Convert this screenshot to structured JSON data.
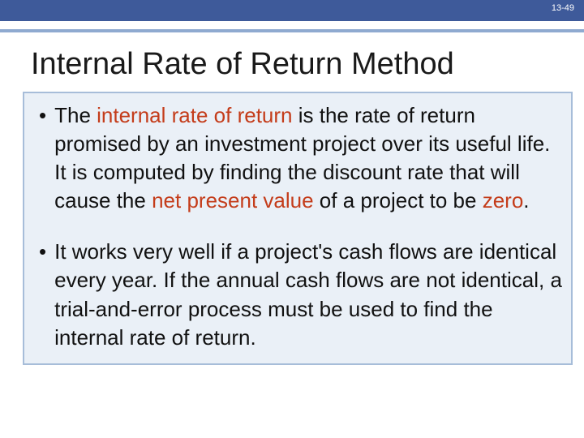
{
  "slide": {
    "number": "13-49",
    "title": "Internal Rate of Return Method",
    "colors": {
      "headerBar": "#3e5a9a",
      "accentLine": "#8faad0",
      "boxFill": "#eaf0f7",
      "boxBorder": "#a7bdd9",
      "highlight": "#c43c1a",
      "text": "#111111",
      "background": "#ffffff"
    },
    "typography": {
      "titleFontSize": 38,
      "bodyFontSize": 26,
      "slideNumberFontSize": 11
    },
    "bullets": [
      {
        "parts": [
          {
            "text": "The ",
            "hl": false
          },
          {
            "text": "internal rate of return ",
            "hl": true
          },
          {
            "text": "is the rate of return promised by an investment project over its useful life. It is computed by finding the discount rate that will cause the ",
            "hl": false
          },
          {
            "text": "net present value ",
            "hl": true
          },
          {
            "text": "of a project to be ",
            "hl": false
          },
          {
            "text": "zero",
            "hl": true
          },
          {
            "text": ".",
            "hl": false
          }
        ]
      },
      {
        "parts": [
          {
            "text": "It works very well if a project's cash flows are identical every year.  If the annual cash flows are not identical, a trial-and-error process must be used to find the internal rate of return.",
            "hl": false
          }
        ]
      }
    ]
  }
}
